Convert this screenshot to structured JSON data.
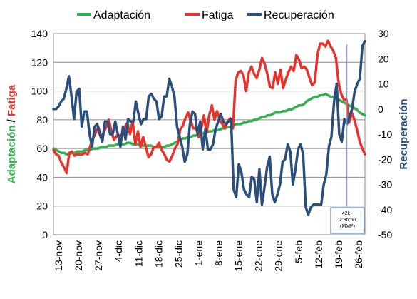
{
  "chart_data": {
    "type": "line",
    "legend_position": "top",
    "grid": true,
    "left_ylim": [
      0,
      140
    ],
    "left_yticks": [
      "0",
      "20",
      "40",
      "60",
      "80",
      "100",
      "120",
      "140"
    ],
    "right_ylim": [
      -50,
      30
    ],
    "right_yticks": [
      "-50",
      "-40",
      "-30",
      "-20",
      "-10",
      "0",
      "10",
      "20",
      "30"
    ],
    "left_ylabel_parts": [
      {
        "text": "Adaptación",
        "color": "#33b14f"
      },
      {
        "text": " / ",
        "color": "#000000"
      },
      {
        "text": "Fatiga",
        "color": "#e8322b"
      }
    ],
    "right_ylabel": {
      "text": "Recuperación",
      "color": "#2b4f7d"
    },
    "x_tick_labels": [
      "13-nov",
      "20-nov",
      "27-nov",
      "4-dic",
      "11-dic",
      "18-dic",
      "25-dic",
      "1-ene",
      "8-ene",
      "15-ene",
      "22-ene",
      "29-ene",
      "5-feb",
      "12-feb",
      "19-feb",
      "26-feb"
    ],
    "annotation": {
      "lines": [
        "42k -",
        "2:36:50",
        "(MMP)"
      ]
    },
    "series": [
      {
        "name": "Adaptación",
        "color": "#33b14f",
        "axis": "left",
        "values": [
          60,
          59,
          58,
          57,
          57,
          56,
          56,
          57,
          57,
          58,
          58,
          58,
          59,
          59,
          59,
          60,
          60,
          60,
          61,
          61,
          61,
          62,
          62,
          62,
          63,
          63,
          63,
          63,
          64,
          64,
          63,
          63,
          63,
          62,
          62,
          62,
          62,
          62,
          61,
          61,
          61,
          61,
          61,
          62,
          62,
          63,
          64,
          65,
          66,
          67,
          67,
          68,
          68,
          69,
          69,
          70,
          70,
          71,
          71,
          72,
          72,
          73,
          73,
          73,
          74,
          74,
          75,
          75,
          76,
          77,
          77,
          77,
          78,
          78,
          79,
          79,
          80,
          80,
          81,
          82,
          82,
          83,
          83,
          84,
          85,
          85,
          85,
          86,
          86,
          87,
          87,
          88,
          89,
          90,
          90,
          91,
          93,
          94,
          95,
          96,
          96,
          97,
          97,
          98,
          97,
          96,
          96,
          95,
          94,
          93,
          92,
          91,
          90,
          89,
          88,
          87,
          85,
          84,
          83
        ]
      },
      {
        "name": "Fatiga",
        "color": "#e8322b",
        "axis": "left",
        "values": [
          59,
          56,
          55,
          50,
          47,
          43,
          57,
          58,
          55,
          56,
          56,
          56,
          57,
          56,
          62,
          67,
          71,
          75,
          68,
          71,
          75,
          80,
          71,
          66,
          69,
          69,
          70,
          75,
          78,
          70,
          79,
          63,
          72,
          61,
          68,
          61,
          54,
          56,
          61,
          61,
          64,
          59,
          56,
          52,
          51,
          55,
          60,
          63,
          73,
          76,
          81,
          85,
          79,
          74,
          74,
          68,
          74,
          83,
          71,
          83,
          90,
          80,
          86,
          80,
          77,
          74,
          79,
          81,
          74,
          107,
          113,
          114,
          111,
          100,
          113,
          117,
          112,
          109,
          115,
          123,
          119,
          112,
          103,
          102,
          113,
          105,
          115,
          102,
          108,
          113,
          117,
          114,
          125,
          122,
          116,
          117,
          115,
          109,
          104,
          106,
          125,
          133,
          133,
          131,
          135,
          131,
          128,
          123,
          106,
          98,
          94,
          94,
          78,
          85,
          80,
          73,
          65,
          60,
          56
        ]
      },
      {
        "name": "Recuperación",
        "color": "#2b4f7d",
        "axis": "right",
        "values": [
          0,
          0,
          1,
          3,
          4,
          8,
          13,
          5,
          -4,
          7,
          8,
          -7,
          -1,
          -1,
          -10,
          -15,
          -7,
          -6,
          -10,
          -13,
          -5,
          -5,
          -10,
          -10,
          -5,
          -10,
          -15,
          -7,
          -12,
          -4,
          -5,
          -5,
          3,
          -2,
          -6,
          -4,
          -4,
          5,
          6,
          4,
          3,
          -4,
          -3,
          5,
          5,
          12,
          9,
          5,
          -7,
          -11,
          -15,
          -21,
          -18,
          -6,
          -1,
          -2,
          -10,
          -5,
          -16,
          -8,
          -16,
          -16,
          -14,
          -8,
          -5,
          -2,
          -5,
          -6,
          -5,
          -4,
          -32,
          -35,
          -22,
          -25,
          -32,
          -34,
          -35,
          -27,
          -28,
          -37,
          -24,
          -38,
          -31,
          -23,
          -19,
          -34,
          -37,
          -34,
          -30,
          -21,
          -20,
          -14,
          -17,
          -30,
          -24,
          -16,
          -14,
          -18,
          -39,
          -42,
          -39,
          -38,
          -38,
          -38,
          -38,
          -30,
          -26,
          -15,
          -11,
          3,
          10,
          -10,
          -13,
          -4,
          -6,
          -3,
          0,
          7,
          10,
          12,
          25,
          27
        ]
      }
    ]
  }
}
